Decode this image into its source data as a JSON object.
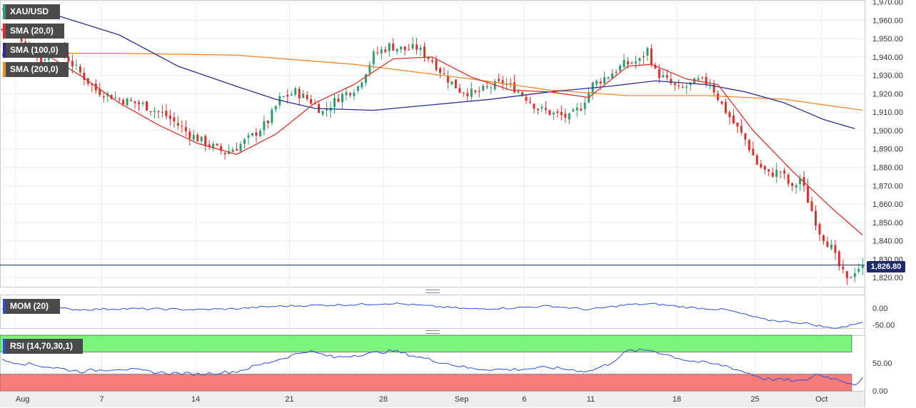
{
  "instrument": "XAU/USD",
  "indicators": {
    "sma20": {
      "label": "SMA (20,0)",
      "color": "#d8322c"
    },
    "sma100": {
      "label": "SMA (100,0)",
      "color": "#2c2d8f"
    },
    "sma200": {
      "label": "SMA (200,0)",
      "color": "#f0892a"
    },
    "mom": {
      "label": "MOM (20)",
      "color": "#2a4fd6"
    },
    "rsi": {
      "label": "RSI (14,70,30,1)",
      "color": "#2a4fd6",
      "upper_zone_color": "#7cf47c",
      "lower_zone_color": "#f87c7c"
    }
  },
  "current_price": "1,826.80",
  "colors": {
    "bullish": "#2e9e6e",
    "bearish": "#d8322c",
    "price_line": "#1f2a6e"
  },
  "chart_data": [
    {
      "type": "candlestick",
      "title": "XAU/USD",
      "y_ticks": [
        "1,970.00",
        "1,960.00",
        "1,950.00",
        "1,940.00",
        "1,930.00",
        "1,920.00",
        "1,910.00",
        "1,900.00",
        "1,890.00",
        "1,880.00",
        "1,870.00",
        "1,860.00",
        "1,850.00",
        "1,840.00",
        "1,830.00",
        "1,820.00"
      ],
      "ylim": [
        1815,
        1971
      ],
      "x_tick_labels": [
        "Aug",
        "7",
        "14",
        "21",
        "28",
        "Sep",
        "6",
        "11",
        "18",
        "25",
        "Oct"
      ],
      "current_price": 1826.8,
      "grid": true,
      "close_path": [
        [
          0,
          1955
        ],
        [
          5,
          1950
        ],
        [
          10,
          1938
        ],
        [
          14,
          1946
        ],
        [
          18,
          1936
        ],
        [
          24,
          1922
        ],
        [
          30,
          1917
        ],
        [
          36,
          1914
        ],
        [
          42,
          1908
        ],
        [
          48,
          1898
        ],
        [
          53,
          1892
        ],
        [
          57,
          1888
        ],
        [
          60,
          1891
        ],
        [
          64,
          1897
        ],
        [
          68,
          1905
        ],
        [
          71,
          1917
        ],
        [
          75,
          1921
        ],
        [
          79,
          1916
        ],
        [
          82,
          1910
        ],
        [
          86,
          1918
        ],
        [
          91,
          1924
        ],
        [
          95,
          1941
        ],
        [
          99,
          1946
        ],
        [
          103,
          1944
        ],
        [
          106,
          1945
        ],
        [
          110,
          1938
        ],
        [
          113,
          1930
        ],
        [
          117,
          1922
        ],
        [
          121,
          1920
        ],
        [
          125,
          1924
        ],
        [
          128,
          1926
        ],
        [
          131,
          1923
        ],
        [
          134,
          1918
        ],
        [
          137,
          1912
        ],
        [
          141,
          1909
        ],
        [
          145,
          1907
        ],
        [
          148,
          1913
        ],
        [
          151,
          1925
        ],
        [
          155,
          1930
        ],
        [
          159,
          1936
        ],
        [
          163,
          1938
        ],
        [
          165,
          1944
        ],
        [
          167,
          1932
        ],
        [
          170,
          1927
        ],
        [
          173,
          1922
        ],
        [
          176,
          1925
        ],
        [
          178,
          1927
        ],
        [
          181,
          1926
        ],
        [
          184,
          1914
        ],
        [
          187,
          1904
        ],
        [
          190,
          1895
        ],
        [
          193,
          1882
        ],
        [
          196,
          1876
        ],
        [
          199,
          1878
        ],
        [
          202,
          1868
        ],
        [
          204,
          1874
        ],
        [
          206,
          1862
        ],
        [
          209,
          1845
        ],
        [
          212,
          1836
        ],
        [
          214,
          1826
        ],
        [
          216,
          1818
        ],
        [
          218,
          1824
        ],
        [
          220,
          1826.8
        ]
      ],
      "sma20": [
        [
          0,
          1941
        ],
        [
          10,
          1943
        ],
        [
          20,
          1930
        ],
        [
          30,
          1915
        ],
        [
          40,
          1903
        ],
        [
          50,
          1893
        ],
        [
          60,
          1887
        ],
        [
          70,
          1898
        ],
        [
          80,
          1915
        ],
        [
          90,
          1925
        ],
        [
          100,
          1939
        ],
        [
          110,
          1940
        ],
        [
          120,
          1929
        ],
        [
          130,
          1922
        ],
        [
          140,
          1921
        ],
        [
          150,
          1918
        ],
        [
          160,
          1935
        ],
        [
          166,
          1936
        ],
        [
          175,
          1928
        ],
        [
          183,
          1925
        ],
        [
          192,
          1900
        ],
        [
          202,
          1878
        ],
        [
          212,
          1858
        ],
        [
          220,
          1843
        ]
      ],
      "sma100": [
        [
          0,
          1966
        ],
        [
          15,
          1962
        ],
        [
          30,
          1952
        ],
        [
          45,
          1935
        ],
        [
          60,
          1924
        ],
        [
          70,
          1917
        ],
        [
          80,
          1912
        ],
        [
          95,
          1911
        ],
        [
          110,
          1914
        ],
        [
          125,
          1917
        ],
        [
          140,
          1921
        ],
        [
          155,
          1924
        ],
        [
          167,
          1927
        ],
        [
          180,
          1925
        ],
        [
          190,
          1921
        ],
        [
          200,
          1915
        ],
        [
          210,
          1906
        ],
        [
          218,
          1901
        ]
      ],
      "sma200": [
        [
          0,
          1942
        ],
        [
          30,
          1942
        ],
        [
          60,
          1941
        ],
        [
          90,
          1936
        ],
        [
          120,
          1928
        ],
        [
          140,
          1922
        ],
        [
          160,
          1919
        ],
        [
          180,
          1919
        ],
        [
          200,
          1917
        ],
        [
          220,
          1911
        ]
      ],
      "annotation_count_visible_legends": 4
    },
    {
      "type": "line",
      "title": "MOM (20)",
      "y_ticks": [
        "0.00",
        "-50.00"
      ],
      "ylim": [
        -60,
        40
      ],
      "values": [
        [
          0,
          -1
        ],
        [
          10,
          2
        ],
        [
          20,
          -5
        ],
        [
          30,
          -2
        ],
        [
          40,
          -3
        ],
        [
          50,
          -5
        ],
        [
          60,
          -2
        ],
        [
          70,
          5
        ],
        [
          80,
          8
        ],
        [
          90,
          10
        ],
        [
          100,
          14
        ],
        [
          110,
          5
        ],
        [
          120,
          -3
        ],
        [
          130,
          0
        ],
        [
          140,
          6
        ],
        [
          150,
          -5
        ],
        [
          160,
          10
        ],
        [
          167,
          12
        ],
        [
          175,
          2
        ],
        [
          185,
          -5
        ],
        [
          195,
          -35
        ],
        [
          205,
          -45
        ],
        [
          212,
          -60
        ],
        [
          216,
          -55
        ],
        [
          220,
          -40
        ]
      ]
    },
    {
      "type": "line",
      "title": "RSI (14,70,30,1)",
      "y_ticks": [
        "50.00",
        "0.00"
      ],
      "ylim": [
        0,
        100
      ],
      "overbought": 70,
      "oversold": 30,
      "values": [
        [
          0,
          55
        ],
        [
          10,
          45
        ],
        [
          20,
          35
        ],
        [
          30,
          40
        ],
        [
          40,
          33
        ],
        [
          50,
          30
        ],
        [
          60,
          35
        ],
        [
          70,
          55
        ],
        [
          78,
          72
        ],
        [
          85,
          60
        ],
        [
          95,
          68
        ],
        [
          100,
          72
        ],
        [
          110,
          55
        ],
        [
          120,
          40
        ],
        [
          130,
          38
        ],
        [
          140,
          42
        ],
        [
          150,
          35
        ],
        [
          155,
          48
        ],
        [
          160,
          72
        ],
        [
          166,
          73
        ],
        [
          175,
          55
        ],
        [
          185,
          45
        ],
        [
          195,
          22
        ],
        [
          205,
          17
        ],
        [
          208,
          30
        ],
        [
          214,
          20
        ],
        [
          218,
          12
        ],
        [
          220,
          22
        ]
      ]
    }
  ]
}
